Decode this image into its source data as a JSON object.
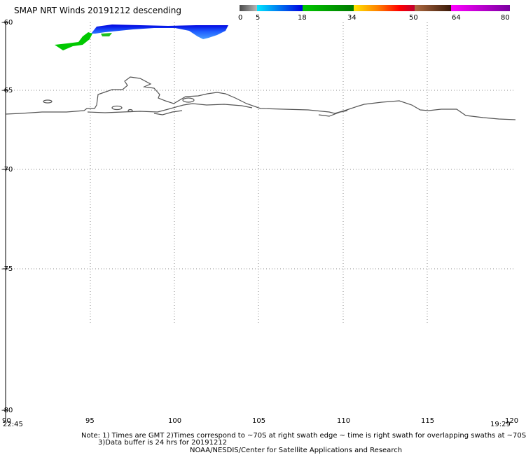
{
  "title": "SMAP NRT Winds  20191212 descending",
  "legend": {
    "tick_labels": [
      "0",
      "5",
      "18",
      "34",
      "50",
      "64",
      "80"
    ],
    "segments": [
      {
        "from": 0,
        "to": 5,
        "colors": [
          "#4a4a4a",
          "#b8b8b8"
        ]
      },
      {
        "from": 5,
        "to": 18,
        "colors": [
          "#00e8ff",
          "#0000e0"
        ]
      },
      {
        "from": 18,
        "to": 34,
        "colors": [
          "#00c800",
          "#007a00"
        ]
      },
      {
        "from": 34,
        "to": 50,
        "colors": [
          "#ffe600",
          "#ff8000",
          "#ff0000",
          "#c00030"
        ]
      },
      {
        "from": 50,
        "to": 64,
        "colors": [
          "#b06a40",
          "#3a1a0a"
        ]
      },
      {
        "from": 64,
        "to": 80,
        "colors": [
          "#ff00ff",
          "#7a00a0"
        ]
      }
    ]
  },
  "map": {
    "lon_range": [
      90,
      120
    ],
    "lat_range": [
      -60,
      -80
    ],
    "lat_gridlines": [
      -65,
      -70,
      -75
    ],
    "lon_gridlines": [
      95,
      100,
      105,
      110,
      115
    ],
    "lat_labels": [
      "-60",
      "-65",
      "-70",
      "-75",
      "-80"
    ],
    "lon_labels": [
      "90",
      "95",
      "100",
      "105",
      "110",
      "115",
      "120"
    ],
    "coast_color": "#555555",
    "grid_style": "dotted"
  },
  "swath": {
    "colors": [
      "#0000e0",
      "#2060ff",
      "#4aa0ff",
      "#00c800"
    ]
  },
  "times": {
    "start": "22:45",
    "end": "19:29"
  },
  "note": {
    "line1": "Note: 1) Times are GMT 2)Times correspond to ~70S at right swath edge ~ time is right swath for overlapping swaths at ~70S",
    "line2": "3)Data buffer is 24 hrs for 20191212"
  },
  "credit": "NOAA/NESDIS/Center for Satellite Applications and Research"
}
